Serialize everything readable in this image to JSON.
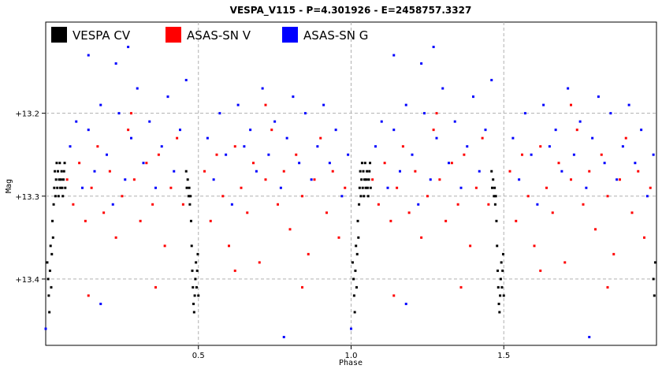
{
  "chart_data": {
    "type": "scatter",
    "title": "VESPA_V115  -  P=4.301926  -  E=2458757.3327",
    "xlabel": "Phase",
    "ylabel": "Mag",
    "xlim": [
      0.0,
      2.0
    ],
    "ylim": [
      13.48,
      13.09
    ],
    "y_inverted": true,
    "grid": true,
    "legend_position": "top-left",
    "x_ticks": [
      {
        "value": 0.5,
        "label": "0.5"
      },
      {
        "value": 1.0,
        "label": "1.0"
      },
      {
        "value": 1.5,
        "label": "1.5"
      }
    ],
    "y_ticks": [
      {
        "value": 13.2,
        "label": "+13.2"
      },
      {
        "value": 13.3,
        "label": "+13.3"
      },
      {
        "value": 13.4,
        "label": "+13.4"
      }
    ],
    "series": [
      {
        "name": "VESPA  CV",
        "color": "#000000",
        "points": [
          [
            0.005,
            13.38
          ],
          [
            0.008,
            13.4
          ],
          [
            0.01,
            13.42
          ],
          [
            0.012,
            13.44
          ],
          [
            0.014,
            13.39
          ],
          [
            0.016,
            13.36
          ],
          [
            0.018,
            13.41
          ],
          [
            0.02,
            13.37
          ],
          [
            0.022,
            13.33
          ],
          [
            0.024,
            13.35
          ],
          [
            0.026,
            13.31
          ],
          [
            0.028,
            13.29
          ],
          [
            0.03,
            13.27
          ],
          [
            0.032,
            13.3
          ],
          [
            0.034,
            13.28
          ],
          [
            0.036,
            13.26
          ],
          [
            0.038,
            13.29
          ],
          [
            0.04,
            13.27
          ],
          [
            0.042,
            13.3
          ],
          [
            0.044,
            13.28
          ],
          [
            0.046,
            13.26
          ],
          [
            0.048,
            13.29
          ],
          [
            0.05,
            13.28
          ],
          [
            0.052,
            13.27
          ],
          [
            0.054,
            13.29
          ],
          [
            0.056,
            13.3
          ],
          [
            0.058,
            13.28
          ],
          [
            0.06,
            13.27
          ],
          [
            0.062,
            13.26
          ],
          [
            0.064,
            13.29
          ],
          [
            0.46,
            13.27
          ],
          [
            0.462,
            13.29
          ],
          [
            0.465,
            13.28
          ],
          [
            0.468,
            13.3
          ],
          [
            0.47,
            13.29
          ],
          [
            0.472,
            13.31
          ],
          [
            0.474,
            13.3
          ],
          [
            0.476,
            13.33
          ],
          [
            0.478,
            13.36
          ],
          [
            0.48,
            13.39
          ],
          [
            0.482,
            13.41
          ],
          [
            0.484,
            13.43
          ],
          [
            0.486,
            13.44
          ],
          [
            0.488,
            13.42
          ],
          [
            0.49,
            13.4
          ],
          [
            0.492,
            13.38
          ],
          [
            0.494,
            13.41
          ],
          [
            0.496,
            13.39
          ],
          [
            0.498,
            13.37
          ],
          [
            0.5,
            13.42
          ],
          [
            1.005,
            13.38
          ],
          [
            1.008,
            13.4
          ],
          [
            1.01,
            13.42
          ],
          [
            1.012,
            13.44
          ],
          [
            1.014,
            13.39
          ],
          [
            1.016,
            13.36
          ],
          [
            1.018,
            13.41
          ],
          [
            1.02,
            13.37
          ],
          [
            1.022,
            13.33
          ],
          [
            1.024,
            13.35
          ],
          [
            1.026,
            13.31
          ],
          [
            1.028,
            13.29
          ],
          [
            1.03,
            13.27
          ],
          [
            1.032,
            13.3
          ],
          [
            1.034,
            13.28
          ],
          [
            1.036,
            13.26
          ],
          [
            1.038,
            13.29
          ],
          [
            1.04,
            13.27
          ],
          [
            1.042,
            13.3
          ],
          [
            1.044,
            13.28
          ],
          [
            1.046,
            13.26
          ],
          [
            1.048,
            13.29
          ],
          [
            1.05,
            13.28
          ],
          [
            1.052,
            13.27
          ],
          [
            1.054,
            13.29
          ],
          [
            1.056,
            13.3
          ],
          [
            1.058,
            13.28
          ],
          [
            1.06,
            13.27
          ],
          [
            1.062,
            13.26
          ],
          [
            1.064,
            13.29
          ],
          [
            1.46,
            13.27
          ],
          [
            1.462,
            13.29
          ],
          [
            1.465,
            13.28
          ],
          [
            1.468,
            13.3
          ],
          [
            1.47,
            13.29
          ],
          [
            1.472,
            13.31
          ],
          [
            1.474,
            13.3
          ],
          [
            1.476,
            13.33
          ],
          [
            1.478,
            13.36
          ],
          [
            1.48,
            13.39
          ],
          [
            1.482,
            13.41
          ],
          [
            1.484,
            13.43
          ],
          [
            1.486,
            13.44
          ],
          [
            1.488,
            13.42
          ],
          [
            1.49,
            13.4
          ],
          [
            1.492,
            13.38
          ],
          [
            1.494,
            13.41
          ],
          [
            1.496,
            13.39
          ],
          [
            1.498,
            13.37
          ],
          [
            1.5,
            13.42
          ],
          [
            1.99,
            13.4
          ],
          [
            1.993,
            13.42
          ],
          [
            1.996,
            13.38
          ]
        ]
      },
      {
        "name": "ASAS-SN  V",
        "color": "#ff0000",
        "points": [
          [
            0.07,
            13.28
          ],
          [
            0.09,
            13.31
          ],
          [
            0.11,
            13.26
          ],
          [
            0.13,
            13.33
          ],
          [
            0.15,
            13.29
          ],
          [
            0.17,
            13.24
          ],
          [
            0.19,
            13.32
          ],
          [
            0.21,
            13.27
          ],
          [
            0.23,
            13.35
          ],
          [
            0.25,
            13.3
          ],
          [
            0.27,
            13.22
          ],
          [
            0.29,
            13.28
          ],
          [
            0.31,
            13.33
          ],
          [
            0.33,
            13.26
          ],
          [
            0.35,
            13.31
          ],
          [
            0.37,
            13.25
          ],
          [
            0.39,
            13.36
          ],
          [
            0.41,
            13.29
          ],
          [
            0.43,
            13.23
          ],
          [
            0.45,
            13.31
          ],
          [
            0.52,
            13.27
          ],
          [
            0.54,
            13.33
          ],
          [
            0.56,
            13.25
          ],
          [
            0.58,
            13.3
          ],
          [
            0.6,
            13.36
          ],
          [
            0.62,
            13.24
          ],
          [
            0.64,
            13.29
          ],
          [
            0.66,
            13.32
          ],
          [
            0.68,
            13.26
          ],
          [
            0.7,
            13.38
          ],
          [
            0.72,
            13.28
          ],
          [
            0.74,
            13.22
          ],
          [
            0.76,
            13.31
          ],
          [
            0.78,
            13.27
          ],
          [
            0.8,
            13.34
          ],
          [
            0.82,
            13.25
          ],
          [
            0.84,
            13.3
          ],
          [
            0.86,
            13.37
          ],
          [
            0.88,
            13.28
          ],
          [
            0.9,
            13.23
          ],
          [
            0.92,
            13.32
          ],
          [
            0.94,
            13.27
          ],
          [
            0.96,
            13.35
          ],
          [
            0.98,
            13.29
          ],
          [
            0.14,
            13.42
          ],
          [
            0.36,
            13.41
          ],
          [
            0.62,
            13.39
          ],
          [
            0.84,
            13.41
          ],
          [
            0.28,
            13.2
          ],
          [
            0.72,
            13.19
          ],
          [
            1.07,
            13.28
          ],
          [
            1.09,
            13.31
          ],
          [
            1.11,
            13.26
          ],
          [
            1.13,
            13.33
          ],
          [
            1.15,
            13.29
          ],
          [
            1.17,
            13.24
          ],
          [
            1.19,
            13.32
          ],
          [
            1.21,
            13.27
          ],
          [
            1.23,
            13.35
          ],
          [
            1.25,
            13.3
          ],
          [
            1.27,
            13.22
          ],
          [
            1.29,
            13.28
          ],
          [
            1.31,
            13.33
          ],
          [
            1.33,
            13.26
          ],
          [
            1.35,
            13.31
          ],
          [
            1.37,
            13.25
          ],
          [
            1.39,
            13.36
          ],
          [
            1.41,
            13.29
          ],
          [
            1.43,
            13.23
          ],
          [
            1.45,
            13.31
          ],
          [
            1.52,
            13.27
          ],
          [
            1.54,
            13.33
          ],
          [
            1.56,
            13.25
          ],
          [
            1.58,
            13.3
          ],
          [
            1.6,
            13.36
          ],
          [
            1.62,
            13.24
          ],
          [
            1.64,
            13.29
          ],
          [
            1.66,
            13.32
          ],
          [
            1.68,
            13.26
          ],
          [
            1.7,
            13.38
          ],
          [
            1.72,
            13.28
          ],
          [
            1.74,
            13.22
          ],
          [
            1.76,
            13.31
          ],
          [
            1.78,
            13.27
          ],
          [
            1.8,
            13.34
          ],
          [
            1.82,
            13.25
          ],
          [
            1.84,
            13.3
          ],
          [
            1.86,
            13.37
          ],
          [
            1.88,
            13.28
          ],
          [
            1.9,
            13.23
          ],
          [
            1.92,
            13.32
          ],
          [
            1.94,
            13.27
          ],
          [
            1.96,
            13.35
          ],
          [
            1.98,
            13.29
          ],
          [
            1.14,
            13.42
          ],
          [
            1.36,
            13.41
          ],
          [
            1.62,
            13.39
          ],
          [
            1.84,
            13.41
          ],
          [
            1.28,
            13.2
          ],
          [
            1.72,
            13.19
          ]
        ]
      },
      {
        "name": "ASAS-SN  G",
        "color": "#0000ff",
        "points": [
          [
            0.08,
            13.24
          ],
          [
            0.1,
            13.21
          ],
          [
            0.12,
            13.29
          ],
          [
            0.14,
            13.22
          ],
          [
            0.16,
            13.27
          ],
          [
            0.18,
            13.19
          ],
          [
            0.2,
            13.25
          ],
          [
            0.22,
            13.31
          ],
          [
            0.24,
            13.2
          ],
          [
            0.26,
            13.28
          ],
          [
            0.28,
            13.23
          ],
          [
            0.3,
            13.17
          ],
          [
            0.32,
            13.26
          ],
          [
            0.34,
            13.21
          ],
          [
            0.36,
            13.29
          ],
          [
            0.38,
            13.24
          ],
          [
            0.4,
            13.18
          ],
          [
            0.42,
            13.27
          ],
          [
            0.44,
            13.22
          ],
          [
            0.46,
            13.16
          ],
          [
            0.53,
            13.23
          ],
          [
            0.55,
            13.28
          ],
          [
            0.57,
            13.2
          ],
          [
            0.59,
            13.25
          ],
          [
            0.61,
            13.31
          ],
          [
            0.63,
            13.19
          ],
          [
            0.65,
            13.24
          ],
          [
            0.67,
            13.22
          ],
          [
            0.69,
            13.27
          ],
          [
            0.71,
            13.17
          ],
          [
            0.73,
            13.25
          ],
          [
            0.75,
            13.21
          ],
          [
            0.77,
            13.29
          ],
          [
            0.79,
            13.23
          ],
          [
            0.81,
            13.18
          ],
          [
            0.83,
            13.26
          ],
          [
            0.85,
            13.2
          ],
          [
            0.87,
            13.28
          ],
          [
            0.89,
            13.24
          ],
          [
            0.91,
            13.19
          ],
          [
            0.93,
            13.26
          ],
          [
            0.95,
            13.22
          ],
          [
            0.97,
            13.3
          ],
          [
            0.99,
            13.25
          ],
          [
            0.23,
            13.14
          ],
          [
            0.14,
            13.13
          ],
          [
            0.27,
            13.12
          ],
          [
            0.18,
            13.43
          ],
          [
            0.78,
            13.47
          ],
          [
            0.0,
            13.46
          ],
          [
            1.08,
            13.24
          ],
          [
            1.1,
            13.21
          ],
          [
            1.12,
            13.29
          ],
          [
            1.14,
            13.22
          ],
          [
            1.16,
            13.27
          ],
          [
            1.18,
            13.19
          ],
          [
            1.2,
            13.25
          ],
          [
            1.22,
            13.31
          ],
          [
            1.24,
            13.2
          ],
          [
            1.26,
            13.28
          ],
          [
            1.28,
            13.23
          ],
          [
            1.3,
            13.17
          ],
          [
            1.32,
            13.26
          ],
          [
            1.34,
            13.21
          ],
          [
            1.36,
            13.29
          ],
          [
            1.38,
            13.24
          ],
          [
            1.4,
            13.18
          ],
          [
            1.42,
            13.27
          ],
          [
            1.44,
            13.22
          ],
          [
            1.46,
            13.16
          ],
          [
            1.53,
            13.23
          ],
          [
            1.55,
            13.28
          ],
          [
            1.57,
            13.2
          ],
          [
            1.59,
            13.25
          ],
          [
            1.61,
            13.31
          ],
          [
            1.63,
            13.19
          ],
          [
            1.65,
            13.24
          ],
          [
            1.67,
            13.22
          ],
          [
            1.69,
            13.27
          ],
          [
            1.71,
            13.17
          ],
          [
            1.73,
            13.25
          ],
          [
            1.75,
            13.21
          ],
          [
            1.77,
            13.29
          ],
          [
            1.79,
            13.23
          ],
          [
            1.81,
            13.18
          ],
          [
            1.83,
            13.26
          ],
          [
            1.85,
            13.2
          ],
          [
            1.87,
            13.28
          ],
          [
            1.89,
            13.24
          ],
          [
            1.91,
            13.19
          ],
          [
            1.93,
            13.26
          ],
          [
            1.95,
            13.22
          ],
          [
            1.97,
            13.3
          ],
          [
            1.99,
            13.25
          ],
          [
            1.23,
            13.14
          ],
          [
            1.14,
            13.13
          ],
          [
            1.27,
            13.12
          ],
          [
            1.18,
            13.43
          ],
          [
            1.78,
            13.47
          ],
          [
            1.0,
            13.46
          ]
        ]
      }
    ]
  }
}
